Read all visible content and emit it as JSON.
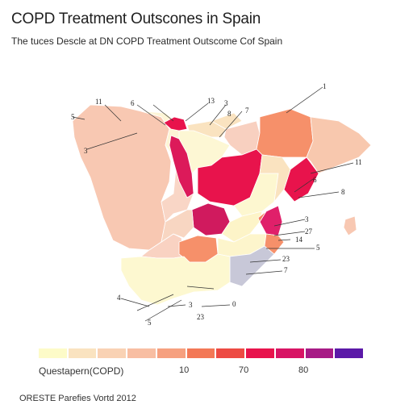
{
  "title": "COPD Treatment Outscones in Spain",
  "subtitle": "The tuces Descle at DN COPD Treatment Outscome Cof Spain",
  "legend": {
    "title": "Questapern(COPD)",
    "ticks": [
      "10",
      "70",
      "80"
    ],
    "colors": [
      "#fdfbc8",
      "#fae3c0",
      "#f9d2b4",
      "#f8bea2",
      "#f6a07f",
      "#f37856",
      "#ed4a43",
      "#e8134c",
      "#d81464",
      "#a71b86",
      "#5b19a8"
    ]
  },
  "source": "ORESTE Parefies Vortd 2012",
  "labels": [
    "11",
    "6",
    "13",
    "3",
    "7",
    "1",
    "5",
    "3",
    "8",
    "11",
    "6",
    "8",
    "3",
    "27",
    "14",
    "5",
    "23",
    "7",
    "4",
    "3",
    "0",
    "23",
    "5"
  ],
  "regions": [
    {
      "name": "Galicia",
      "color": "#f8c8b2"
    },
    {
      "name": "Asturias",
      "color": "#fdf5d6"
    },
    {
      "name": "Cantabria",
      "color": "#e8134c"
    },
    {
      "name": "Basque Country",
      "color": "#fae3c0"
    },
    {
      "name": "Navarra",
      "color": "#f8d0c0"
    },
    {
      "name": "Aragon",
      "color": "#f6906a"
    },
    {
      "name": "Catalonia",
      "color": "#f8c8ae"
    },
    {
      "name": "Castile and Leon West",
      "color": "#f9d6c6"
    },
    {
      "name": "Castile and Leon North",
      "color": "#fdf7d4"
    },
    {
      "name": "Castile and Leon Central",
      "color": "#dc1a5a"
    },
    {
      "name": "Castile and Leon East",
      "color": "#e8134c"
    },
    {
      "name": "La Rioja",
      "color": "#fae3c0"
    },
    {
      "name": "Extremadura",
      "color": "#f9d2c2"
    },
    {
      "name": "Madrid",
      "color": "#d01a5e"
    },
    {
      "name": "Castile La Mancha West",
      "color": "#f8d6c2"
    },
    {
      "name": "Castile La Mancha East",
      "color": "#fdf7d0"
    },
    {
      "name": "Valencia North",
      "color": "#e8134c"
    },
    {
      "name": "Valencia Central",
      "color": "#e0206a"
    },
    {
      "name": "Teruel",
      "color": "#fae3c0"
    },
    {
      "name": "Cuenca",
      "color": "#fdf4c8"
    },
    {
      "name": "Ciudad Real",
      "color": "#f6906a"
    },
    {
      "name": "Albacete",
      "color": "#fdf5cc"
    },
    {
      "name": "Murcia",
      "color": "#c8c8d8"
    },
    {
      "name": "Valencia South",
      "color": "#f6906a"
    },
    {
      "name": "Andalusia",
      "color": "#fdf8d0"
    },
    {
      "name": "Balearic Islands",
      "color": "#f8c8b2"
    },
    {
      "name": "Castellon",
      "color": "#f58060"
    }
  ]
}
